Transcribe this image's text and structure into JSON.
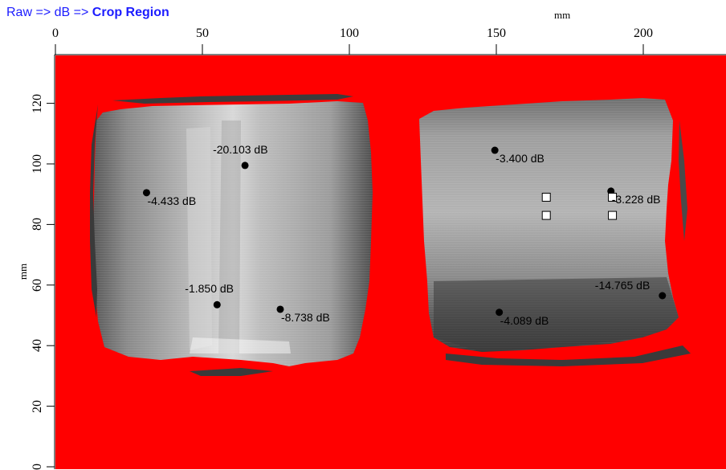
{
  "breadcrumb": {
    "raw": "Raw",
    "db": "dB",
    "current": "Crop Region",
    "separator": "=>"
  },
  "plot": {
    "x_axis_title": "mm",
    "y_axis_title": "mm",
    "x_ticks": [
      "0",
      "50",
      "100",
      "150",
      "200"
    ],
    "y_ticks": [
      "120",
      "100",
      "80",
      "60",
      "40",
      "20",
      "0"
    ],
    "background_color": "#ff0000",
    "scan_color": "#a8a8a8"
  },
  "markers": [
    {
      "mm_x": 31,
      "mm_y": 90.5,
      "label": "-4.433 dB"
    },
    {
      "mm_x": 64.5,
      "mm_y": 99.5,
      "label": "-20.103 dB"
    },
    {
      "mm_x": 55,
      "mm_y": 53.5,
      "label": "-1.850 dB"
    },
    {
      "mm_x": 76.5,
      "mm_y": 52,
      "label": "-8.738 dB"
    },
    {
      "mm_x": 149.5,
      "mm_y": 104.5,
      "label": "-3.400 dB"
    },
    {
      "mm_x": 189,
      "mm_y": 91,
      "label": "-3.228 dB"
    },
    {
      "mm_x": 151,
      "mm_y": 51,
      "label": "-4.089 dB"
    },
    {
      "mm_x": 206.5,
      "mm_y": 56.5,
      "label": "-14.765 dB"
    }
  ],
  "selection_handles": [
    {
      "mm_x": 167,
      "mm_y": 89
    },
    {
      "mm_x": 189.5,
      "mm_y": 89
    },
    {
      "mm_x": 167,
      "mm_y": 83
    },
    {
      "mm_x": 189.5,
      "mm_y": 83
    }
  ]
}
